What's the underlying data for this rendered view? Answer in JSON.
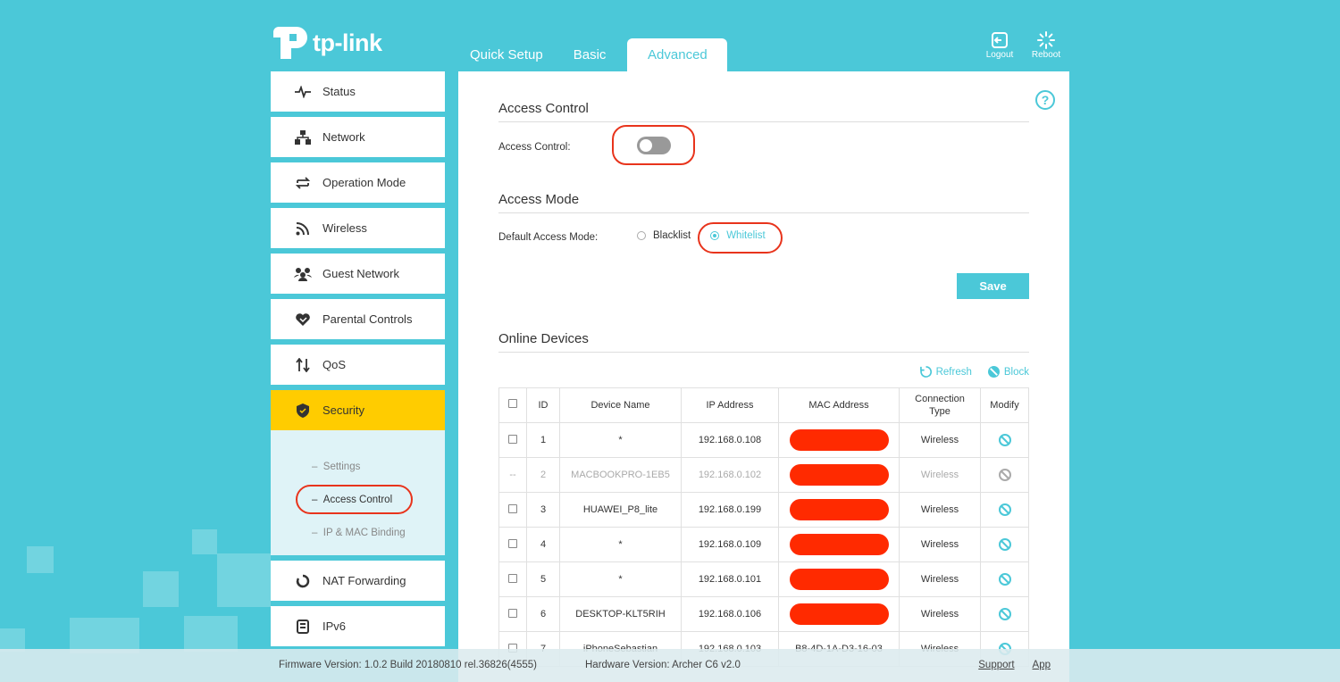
{
  "brand": {
    "name": "tp-link"
  },
  "top_nav": {
    "tabs": [
      "Quick Setup",
      "Basic",
      "Advanced"
    ],
    "active": "Advanced"
  },
  "top_actions": {
    "logout": "Logout",
    "reboot": "Reboot"
  },
  "sidebar": {
    "items": [
      {
        "label": "Status",
        "icon": "pulse-icon"
      },
      {
        "label": "Network",
        "icon": "network-icon"
      },
      {
        "label": "Operation Mode",
        "icon": "swap-icon"
      },
      {
        "label": "Wireless",
        "icon": "wifi-icon"
      },
      {
        "label": "Guest Network",
        "icon": "guests-icon"
      },
      {
        "label": "Parental Controls",
        "icon": "heart-icon"
      },
      {
        "label": "QoS",
        "icon": "updown-arrows-icon"
      },
      {
        "label": "Security",
        "icon": "shield-icon"
      },
      {
        "label": "NAT Forwarding",
        "icon": "refresh-icon"
      },
      {
        "label": "IPv6",
        "icon": "document-icon"
      }
    ],
    "security_sub": [
      "Settings",
      "Access Control",
      "IP & MAC Binding"
    ],
    "active": "Security",
    "active_sub": "Access Control"
  },
  "access_control": {
    "title": "Access Control",
    "toggle_label": "Access Control:",
    "enabled": false
  },
  "access_mode": {
    "title": "Access Mode",
    "label": "Default Access Mode:",
    "options": [
      "Blacklist",
      "Whitelist"
    ],
    "selected": "Whitelist"
  },
  "save_label": "Save",
  "online_devices": {
    "title": "Online Devices",
    "refresh_label": "Refresh",
    "block_label": "Block",
    "headers": [
      "ID",
      "Device Name",
      "IP Address",
      "MAC Address",
      "Connection Type",
      "Modify"
    ],
    "rows": [
      {
        "check": "",
        "id": "1",
        "name": "*",
        "ip": "192.168.0.108",
        "mac": "",
        "type": "Wireless",
        "dim": false
      },
      {
        "check": "--",
        "id": "2",
        "name": "MACBOOKPRO-1EB5",
        "ip": "192.168.0.102",
        "mac": "",
        "type": "Wireless",
        "dim": true
      },
      {
        "check": "",
        "id": "3",
        "name": "HUAWEI_P8_lite",
        "ip": "192.168.0.199",
        "mac": "",
        "type": "Wireless",
        "dim": false
      },
      {
        "check": "",
        "id": "4",
        "name": "*",
        "ip": "192.168.0.109",
        "mac": "",
        "type": "Wireless",
        "dim": false
      },
      {
        "check": "",
        "id": "5",
        "name": "*",
        "ip": "192.168.0.101",
        "mac": "",
        "type": "Wireless",
        "dim": false
      },
      {
        "check": "",
        "id": "6",
        "name": "DESKTOP-KLT5RIH",
        "ip": "192.168.0.106",
        "mac": "",
        "type": "Wireless",
        "dim": false
      },
      {
        "check": "",
        "id": "7",
        "name": "iPhoneSebastian",
        "ip": "192.168.0.103",
        "mac": "B8-4D-1A-D3-16-03",
        "type": "Wireless",
        "dim": false
      }
    ]
  },
  "footer": {
    "firmware": "Firmware Version: 1.0.2 Build 20180810 rel.36826(4555)",
    "hardware": "Hardware Version: Archer C6 v2.0",
    "support": "Support",
    "app": "App"
  },
  "colors": {
    "accent": "#4bc8d8",
    "active_menu": "#ffcc00",
    "annotation": "#e8341c",
    "redaction": "#ff2a00"
  }
}
